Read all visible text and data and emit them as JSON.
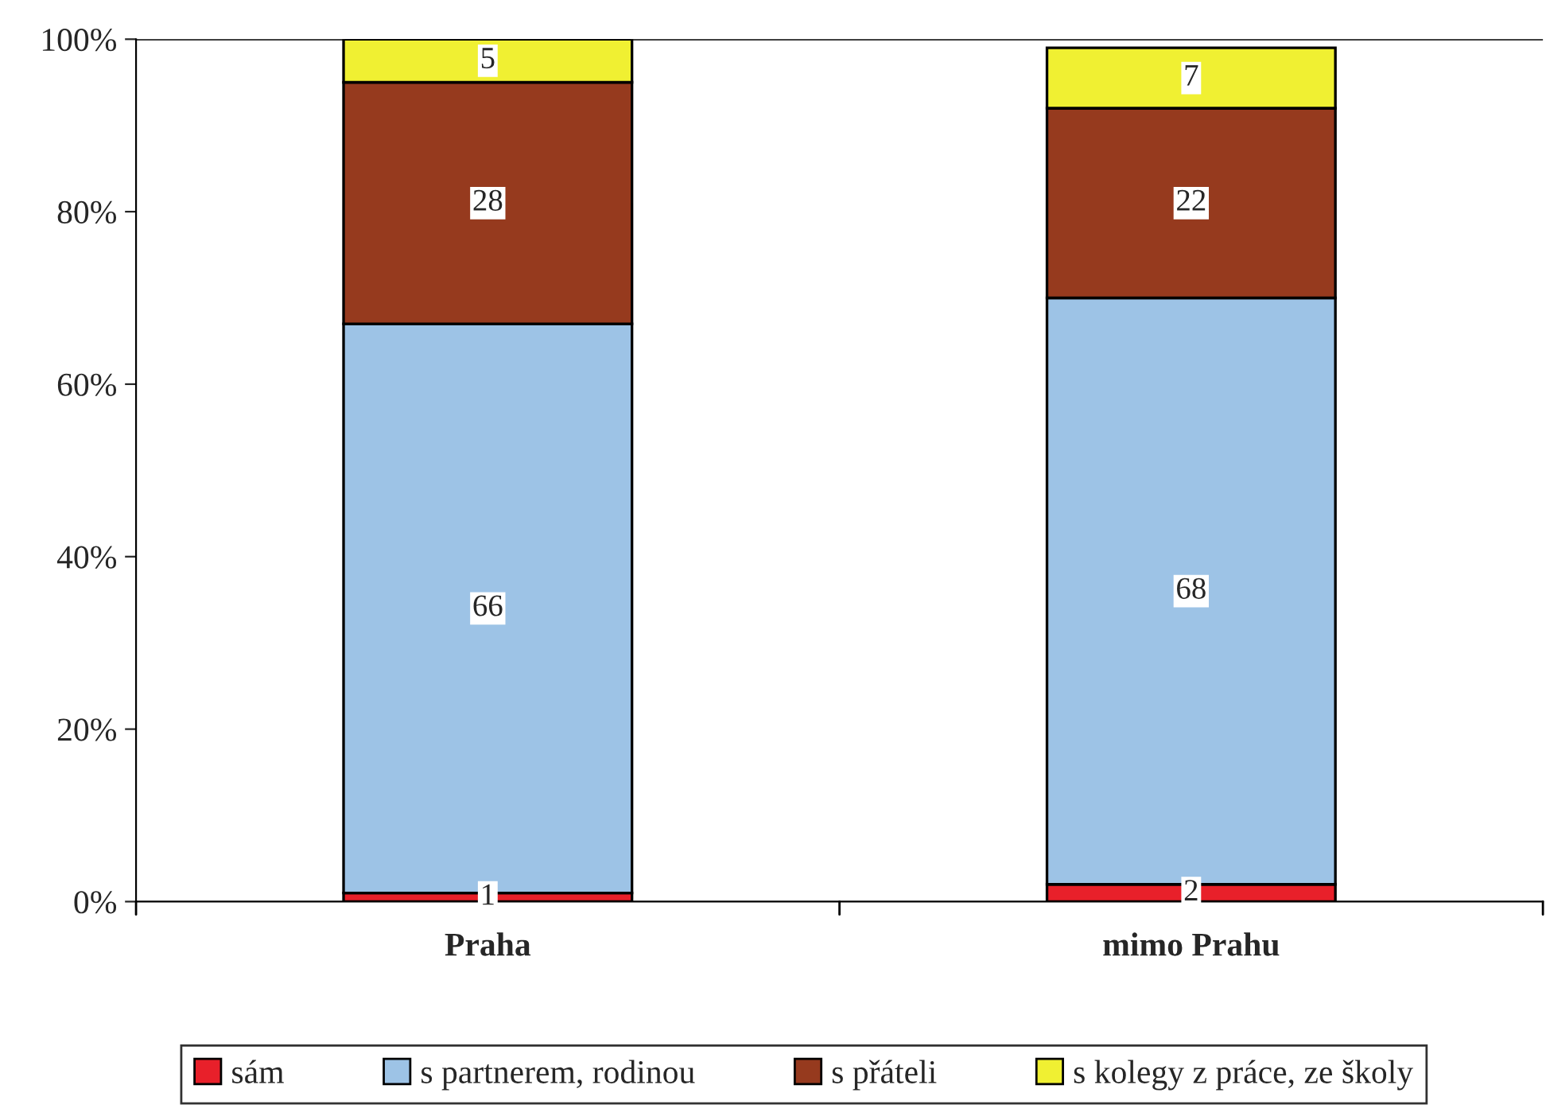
{
  "chart_data": {
    "type": "bar",
    "stacked": true,
    "categories": [
      "Praha",
      "mimo Prahu"
    ],
    "series": [
      {
        "name": "sám",
        "color": "#e8202a",
        "values": [
          1,
          2
        ]
      },
      {
        "name": "s partnerem, rodinou",
        "color": "#9dc3e6",
        "values": [
          66,
          68
        ]
      },
      {
        "name": "s přáteli",
        "color": "#963a1e",
        "values": [
          28,
          22
        ]
      },
      {
        "name": "s kolegy z práce, ze školy",
        "color": "#f0f032",
        "values": [
          5,
          7
        ]
      }
    ],
    "ylim": [
      0,
      100
    ],
    "yticks": [
      {
        "value": 0,
        "label": "0%"
      },
      {
        "value": 20,
        "label": "20%"
      },
      {
        "value": 40,
        "label": "40%"
      },
      {
        "value": 60,
        "label": "60%"
      },
      {
        "value": 80,
        "label": "80%"
      },
      {
        "value": 100,
        "label": "100%"
      }
    ],
    "data_labels": true,
    "grid": false,
    "legend": "bottom"
  }
}
